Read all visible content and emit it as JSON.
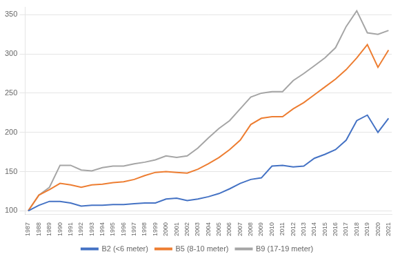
{
  "chart_data": {
    "type": "line",
    "x": [
      1987,
      1988,
      1989,
      1990,
      1991,
      1992,
      1993,
      1994,
      1995,
      1996,
      1997,
      1998,
      1999,
      2000,
      2001,
      2002,
      2003,
      2004,
      2005,
      2006,
      2007,
      2008,
      2009,
      2010,
      2011,
      2012,
      2013,
      2014,
      2015,
      2016,
      2017,
      2018,
      2019,
      2020,
      2021
    ],
    "series": [
      {
        "name": "B2 (<6 meter)",
        "color": "#4472c4",
        "values": [
          100,
          107,
          112,
          112,
          110,
          106,
          107,
          107,
          108,
          108,
          109,
          110,
          110,
          115,
          116,
          113,
          115,
          118,
          122,
          128,
          135,
          140,
          142,
          157,
          158,
          156,
          157,
          167,
          172,
          178,
          190,
          215,
          222,
          200,
          218
        ]
      },
      {
        "name": "B5 (8-10 meter)",
        "color": "#ed7d31",
        "values": [
          100,
          120,
          127,
          135,
          133,
          130,
          133,
          134,
          136,
          137,
          140,
          145,
          149,
          150,
          149,
          148,
          153,
          160,
          168,
          178,
          190,
          210,
          218,
          220,
          220,
          230,
          238,
          248,
          258,
          268,
          280,
          295,
          312,
          283,
          305
        ]
      },
      {
        "name": "B9 (17-19 meter)",
        "color": "#a5a5a5",
        "values": [
          100,
          120,
          130,
          158,
          158,
          152,
          151,
          155,
          157,
          157,
          160,
          162,
          165,
          170,
          168,
          170,
          180,
          193,
          205,
          215,
          230,
          245,
          250,
          252,
          252,
          266,
          275,
          285,
          295,
          308,
          335,
          355,
          327,
          325,
          330
        ]
      }
    ],
    "xlim": [
      1986.7,
      2021.3
    ],
    "xticks": [
      1987,
      1988,
      1989,
      1990,
      1991,
      1992,
      1993,
      1994,
      1995,
      1996,
      1997,
      1998,
      1999,
      2000,
      2001,
      2002,
      2003,
      2004,
      2005,
      2006,
      2007,
      2008,
      2009,
      2010,
      2011,
      2012,
      2013,
      2014,
      2015,
      2016,
      2017,
      2018,
      2019,
      2020,
      2021
    ],
    "ylim": [
      95,
      360
    ],
    "yticks": [
      100,
      150,
      200,
      250,
      300,
      350
    ],
    "grid": true,
    "legend": "bottom"
  }
}
